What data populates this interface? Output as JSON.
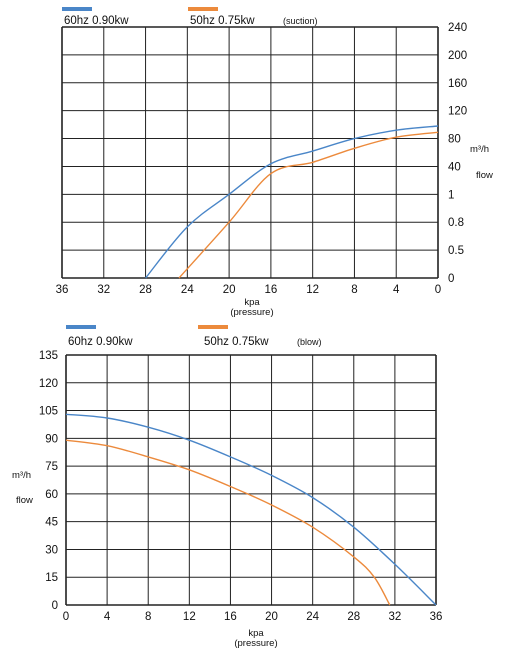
{
  "chart_data": [
    {
      "type": "line",
      "legend": [
        {
          "name": "60hz 0.90kw",
          "color": "#4a86c8"
        },
        {
          "name": "50hz  0.75kw",
          "color": "#ec8a3c"
        }
      ],
      "mode_label": "(suction)",
      "x_ticks": [
        "36",
        "32",
        "28",
        "24",
        "20",
        "16",
        "12",
        "8",
        "4",
        "0"
      ],
      "x_reversed": true,
      "xlim": [
        0,
        36
      ],
      "y_ticks": [
        "0",
        "0.5",
        "0.8",
        "1",
        "40",
        "80",
        "120",
        "160",
        "200",
        "240"
      ],
      "ylabel_unit": "m³/h",
      "ylabel_word": "flow",
      "xlabel_unit": "kpa",
      "xlabel_word": "(pressure)",
      "series": [
        {
          "name": "60hz 0.90kw",
          "color": "#4a86c8",
          "points": [
            [
              28,
              0
            ],
            [
              24,
              0.75
            ],
            [
              20,
              1
            ],
            [
              16,
              44
            ],
            [
              12,
              62
            ],
            [
              8,
              80
            ],
            [
              4,
              92
            ],
            [
              0,
              98
            ]
          ]
        },
        {
          "name": "50hz  0.75kw",
          "color": "#ec8a3c",
          "points": [
            [
              24.8,
              0
            ],
            [
              20,
              0.8
            ],
            [
              16,
              30
            ],
            [
              12,
              46
            ],
            [
              8,
              66
            ],
            [
              4,
              82
            ],
            [
              0,
              89
            ]
          ]
        }
      ]
    },
    {
      "type": "line",
      "legend": [
        {
          "name": "60hz 0.90kw",
          "color": "#4a86c8"
        },
        {
          "name": "50hz  0.75kw",
          "color": "#ec8a3c"
        }
      ],
      "mode_label": "(blow)",
      "x_ticks": [
        "0",
        "4",
        "8",
        "12",
        "16",
        "20",
        "24",
        "28",
        "32",
        "36"
      ],
      "x_reversed": false,
      "xlim": [
        0,
        36
      ],
      "ylim": [
        0,
        135
      ],
      "y_ticks": [
        "0",
        "15",
        "30",
        "45",
        "60",
        "75",
        "90",
        "105",
        "120",
        "135"
      ],
      "ylabel_unit": "m³/h",
      "ylabel_word": "flow",
      "xlabel_unit": "kpa",
      "xlabel_word": "(pressure)",
      "series": [
        {
          "name": "60hz 0.90kw",
          "color": "#4a86c8",
          "points": [
            [
              0,
              103
            ],
            [
              4,
              101
            ],
            [
              8,
              96
            ],
            [
              12,
              89
            ],
            [
              16,
              80
            ],
            [
              20,
              70
            ],
            [
              24,
              58
            ],
            [
              28,
              42
            ],
            [
              32,
              22
            ],
            [
              36,
              0
            ]
          ]
        },
        {
          "name": "50hz  0.75kw",
          "color": "#ec8a3c",
          "points": [
            [
              0,
              89
            ],
            [
              4,
              86
            ],
            [
              8,
              80
            ],
            [
              12,
              73
            ],
            [
              16,
              64
            ],
            [
              20,
              54
            ],
            [
              24,
              42
            ],
            [
              28,
              26
            ],
            [
              30,
              15
            ],
            [
              31.5,
              0
            ]
          ]
        }
      ]
    }
  ]
}
